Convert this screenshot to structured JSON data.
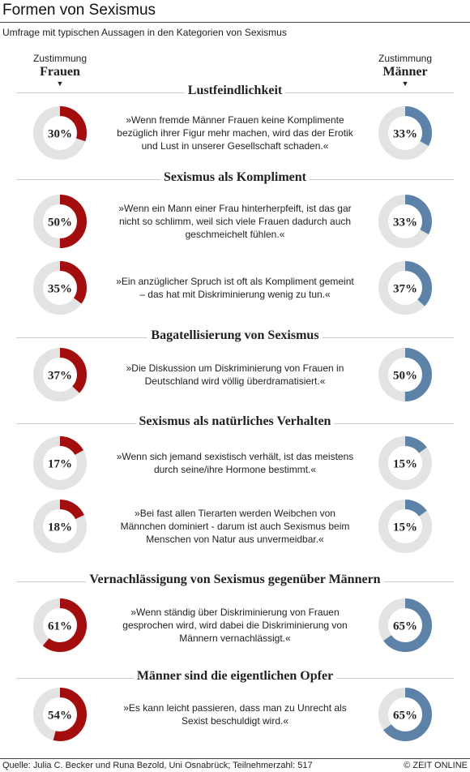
{
  "header": {
    "title": "Formen von Sexismus",
    "subtitle": "Umfrage mit typischen Aussagen in den Kategorien von Sexismus"
  },
  "columns": {
    "women": {
      "line1": "Zustimmung",
      "line2": "Frauen",
      "arrow": "▼"
    },
    "men": {
      "line1": "Zustimmung",
      "line2": "Männer",
      "arrow": "▼"
    }
  },
  "colors": {
    "women": "#a30d0d",
    "men": "#5c82a8",
    "track": "#e3e3e3"
  },
  "chart_data": {
    "type": "donut",
    "series": [
      {
        "name": "Frauen"
      },
      {
        "name": "Männer"
      }
    ],
    "categories": [
      {
        "title": "Lustfeindlichkeit",
        "items": [
          {
            "statement": "»Wenn fremde Männer Frauen keine Komplimente bezüglich ihrer Figur mehr machen, wird das der Erotik und Lust in unserer Gesellschaft schaden.«",
            "women": 30,
            "men": 33
          }
        ]
      },
      {
        "title": "Sexismus als Kompliment",
        "items": [
          {
            "statement": "»Wenn ein Mann einer Frau hinterherpfeift, ist das gar nicht so schlimm, weil sich viele Frauen dadurch auch geschmeichelt fühlen.«",
            "women": 50,
            "men": 33
          },
          {
            "statement": "»Ein anzüglicher Spruch ist oft als Kompliment gemeint – das hat mit Diskriminierung wenig zu tun.«",
            "women": 35,
            "men": 37
          }
        ]
      },
      {
        "title": "Bagatellisierung von Sexismus",
        "items": [
          {
            "statement": "»Die Diskussion um Diskriminierung von Frauen in Deutschland wird völlig überdramatisiert.«",
            "women": 37,
            "men": 50
          }
        ]
      },
      {
        "title": "Sexismus als natürliches Verhalten",
        "items": [
          {
            "statement": "»Wenn sich jemand sexistisch verhält, ist das meistens durch seine/ihre Hormone bestimmt.«",
            "women": 17,
            "men": 15
          },
          {
            "statement": "»Bei fast allen Tierarten werden Weibchen von Männchen dominiert - darum ist auch Sexismus beim Menschen von Natur aus unvermeidbar.«",
            "women": 18,
            "men": 15
          }
        ]
      },
      {
        "title": "Vernachlässigung von Sexismus gegenüber Männern",
        "items": [
          {
            "statement": "»Wenn ständig über Diskriminierung von Frauen gesprochen wird, wird dabei die Diskriminierung von Männern vernachlässigt.«",
            "women": 61,
            "men": 65
          }
        ]
      },
      {
        "title": "Männer sind die eigentlichen Opfer",
        "items": [
          {
            "statement": "»Es kann leicht passieren, dass man zu Unrecht als Sexist beschuldigt wird.«",
            "women": 54,
            "men": 65
          }
        ]
      }
    ]
  },
  "footer": {
    "source": "Quelle: Julia C. Becker und Runa Bezold, Uni Osnabrück; Teilnehmerzahl: 517",
    "brand": "© ZEIT ONLINE"
  }
}
